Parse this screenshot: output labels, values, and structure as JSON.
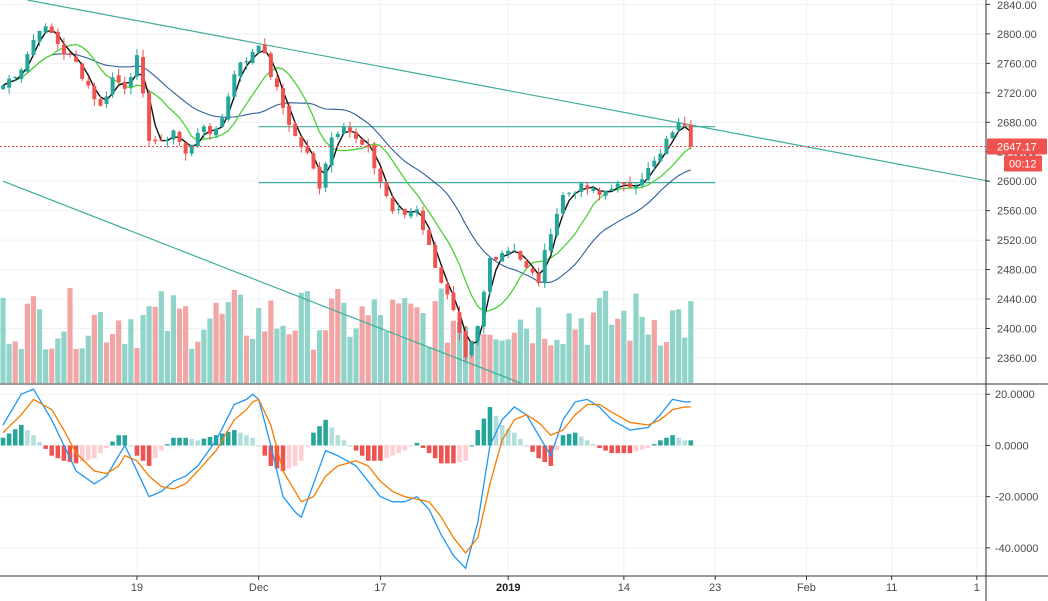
{
  "colors": {
    "up": "#26a69a",
    "down": "#ef5350",
    "vol_up": "#8fd3c9",
    "vol_down": "#f2a5a5",
    "ma_fast": "#111111",
    "ma_mid": "#4cd137",
    "ma_slow": "#2f5f99",
    "trend": "#3fae9a",
    "macd": "#2196f3",
    "signal": "#f57c00",
    "hist_pos_strong": "#26a69a",
    "hist_pos_weak": "#b2dfdb",
    "hist_neg_strong": "#ef5350",
    "hist_neg_weak": "#ffcdd2",
    "badge": "#ef5350",
    "grid": "#eef1f4",
    "axis": "#333333"
  },
  "chart_data": {
    "type": "candlestick",
    "title": "",
    "price_axis": {
      "ylim": [
        2326,
        2846
      ],
      "ticks": [
        "2360.00",
        "2400.00",
        "2440.00",
        "2480.00",
        "2520.00",
        "2560.00",
        "2600.00",
        "2640.00",
        "2680.00",
        "2720.00",
        "2760.00",
        "2800.00",
        "2840.00"
      ]
    },
    "x_axis": {
      "labels": [
        {
          "text": "19",
          "bar": 22,
          "bold": false
        },
        {
          "text": "Dec",
          "bar": 42,
          "bold": false
        },
        {
          "text": "17",
          "bar": 62,
          "bold": false
        },
        {
          "text": "2019",
          "bar": 83,
          "bold": true
        },
        {
          "text": "14",
          "bar": 102,
          "bold": false
        },
        {
          "text": "23",
          "bar": 117,
          "bold": false
        },
        {
          "text": "Feb",
          "bar": 132,
          "bold": false
        },
        {
          "text": "11",
          "bar": 146,
          "bold": false
        },
        {
          "text": "1",
          "bar": 160,
          "bold": false
        }
      ],
      "n_slots": 162
    },
    "close_anchors": [
      [
        0,
        2730
      ],
      [
        3,
        2755
      ],
      [
        6,
        2810
      ],
      [
        8,
        2800
      ],
      [
        10,
        2775
      ],
      [
        12,
        2760
      ],
      [
        14,
        2730
      ],
      [
        16,
        2700
      ],
      [
        18,
        2740
      ],
      [
        20,
        2730
      ],
      [
        22,
        2765
      ],
      [
        24,
        2660
      ],
      [
        26,
        2650
      ],
      [
        28,
        2670
      ],
      [
        30,
        2635
      ],
      [
        32,
        2670
      ],
      [
        34,
        2665
      ],
      [
        36,
        2685
      ],
      [
        38,
        2750
      ],
      [
        40,
        2765
      ],
      [
        42,
        2790
      ],
      [
        44,
        2745
      ],
      [
        46,
        2700
      ],
      [
        48,
        2660
      ],
      [
        50,
        2635
      ],
      [
        52,
        2595
      ],
      [
        54,
        2660
      ],
      [
        56,
        2680
      ],
      [
        58,
        2655
      ],
      [
        60,
        2640
      ],
      [
        62,
        2600
      ],
      [
        64,
        2560
      ],
      [
        66,
        2555
      ],
      [
        68,
        2565
      ],
      [
        70,
        2510
      ],
      [
        72,
        2465
      ],
      [
        74,
        2420
      ],
      [
        76,
        2355
      ],
      [
        78,
        2400
      ],
      [
        80,
        2495
      ],
      [
        82,
        2505
      ],
      [
        84,
        2510
      ],
      [
        86,
        2480
      ],
      [
        88,
        2465
      ],
      [
        90,
        2535
      ],
      [
        92,
        2580
      ],
      [
        94,
        2590
      ],
      [
        96,
        2590
      ],
      [
        98,
        2580
      ],
      [
        100,
        2595
      ],
      [
        102,
        2590
      ],
      [
        104,
        2600
      ],
      [
        106,
        2615
      ],
      [
        108,
        2635
      ],
      [
        110,
        2670
      ],
      [
        112,
        2680
      ],
      [
        113,
        2647.17
      ]
    ],
    "last_price": "2647.17",
    "countdown": "00:12",
    "volume_pattern": "UUDUDDUUDUUDDUUDUDDDUUDUUDUUUDDUDUUDDUDUDUUDDUUDDUUDUDDDUUUDDUUUDDUDDUUDUDDUUDUDDUUUDUUDUDDUUUDUUDUUUDUDUUUDUDUUU",
    "macd_axis": {
      "ylim": [
        -51,
        24
      ],
      "ticks": [
        "20.0000",
        "0.0000",
        "-20.0000",
        "-40.0000"
      ]
    },
    "macd_anchors": [
      [
        0,
        8
      ],
      [
        3,
        20
      ],
      [
        5,
        22
      ],
      [
        8,
        10
      ],
      [
        10,
        0
      ],
      [
        12,
        -10
      ],
      [
        15,
        -15
      ],
      [
        17,
        -12
      ],
      [
        19,
        -4
      ],
      [
        20,
        0
      ],
      [
        22,
        -10
      ],
      [
        24,
        -20
      ],
      [
        26,
        -18
      ],
      [
        28,
        -14
      ],
      [
        30,
        -12
      ],
      [
        32,
        -8
      ],
      [
        35,
        2
      ],
      [
        38,
        16
      ],
      [
        40,
        18
      ],
      [
        41,
        20
      ],
      [
        42,
        18
      ],
      [
        44,
        0
      ],
      [
        46,
        -20
      ],
      [
        48,
        -26
      ],
      [
        49,
        -28
      ],
      [
        51,
        -15
      ],
      [
        53,
        -2
      ],
      [
        55,
        -4
      ],
      [
        58,
        -8
      ],
      [
        60,
        -14
      ],
      [
        62,
        -20
      ],
      [
        64,
        -22
      ],
      [
        66,
        -22
      ],
      [
        68,
        -20
      ],
      [
        70,
        -25
      ],
      [
        72,
        -35
      ],
      [
        74,
        -43
      ],
      [
        76,
        -48
      ],
      [
        78,
        -30
      ],
      [
        80,
        0
      ],
      [
        82,
        10
      ],
      [
        84,
        15
      ],
      [
        86,
        12
      ],
      [
        88,
        4
      ],
      [
        90,
        -4
      ],
      [
        92,
        10
      ],
      [
        94,
        17
      ],
      [
        96,
        18
      ],
      [
        98,
        15
      ],
      [
        100,
        10
      ],
      [
        103,
        6
      ],
      [
        106,
        7
      ],
      [
        108,
        12
      ],
      [
        110,
        18
      ],
      [
        112,
        17
      ]
    ],
    "signal_anchors": [
      [
        0,
        5
      ],
      [
        3,
        12
      ],
      [
        5,
        18
      ],
      [
        8,
        14
      ],
      [
        10,
        6
      ],
      [
        12,
        -3
      ],
      [
        15,
        -10
      ],
      [
        17,
        -11
      ],
      [
        19,
        -8
      ],
      [
        20,
        -4
      ],
      [
        22,
        -6
      ],
      [
        24,
        -12
      ],
      [
        26,
        -16
      ],
      [
        28,
        -17
      ],
      [
        30,
        -15
      ],
      [
        32,
        -10
      ],
      [
        35,
        -2
      ],
      [
        38,
        10
      ],
      [
        40,
        14
      ],
      [
        41,
        17
      ],
      [
        42,
        18
      ],
      [
        44,
        8
      ],
      [
        46,
        -10
      ],
      [
        48,
        -18
      ],
      [
        49,
        -22
      ],
      [
        51,
        -20
      ],
      [
        53,
        -12
      ],
      [
        55,
        -8
      ],
      [
        58,
        -6
      ],
      [
        60,
        -8
      ],
      [
        62,
        -14
      ],
      [
        64,
        -18
      ],
      [
        66,
        -20
      ],
      [
        68,
        -21
      ],
      [
        70,
        -22
      ],
      [
        72,
        -28
      ],
      [
        74,
        -36
      ],
      [
        76,
        -42
      ],
      [
        78,
        -36
      ],
      [
        80,
        -15
      ],
      [
        82,
        2
      ],
      [
        84,
        10
      ],
      [
        86,
        12
      ],
      [
        88,
        9
      ],
      [
        90,
        4
      ],
      [
        92,
        6
      ],
      [
        94,
        12
      ],
      [
        96,
        16
      ],
      [
        98,
        16
      ],
      [
        100,
        13
      ],
      [
        103,
        9
      ],
      [
        106,
        8
      ],
      [
        108,
        10
      ],
      [
        110,
        14
      ],
      [
        112,
        15
      ]
    ],
    "trendlines": [
      {
        "name": "upper-trendline",
        "from": {
          "bar": 4,
          "price": 2846
        },
        "to": {
          "bar": 162,
          "price": 2600
        }
      },
      {
        "name": "lower-trendline",
        "from": {
          "bar": 0,
          "price": 2600
        },
        "to": {
          "bar": 85,
          "price": 2326
        }
      },
      {
        "name": "resistance-line",
        "from": {
          "bar": 42,
          "price": 2674
        },
        "to": {
          "bar": 117,
          "price": 2674
        }
      },
      {
        "name": "support-line",
        "from": {
          "bar": 42,
          "price": 2598
        },
        "to": {
          "bar": 117,
          "price": 2598
        }
      }
    ]
  }
}
